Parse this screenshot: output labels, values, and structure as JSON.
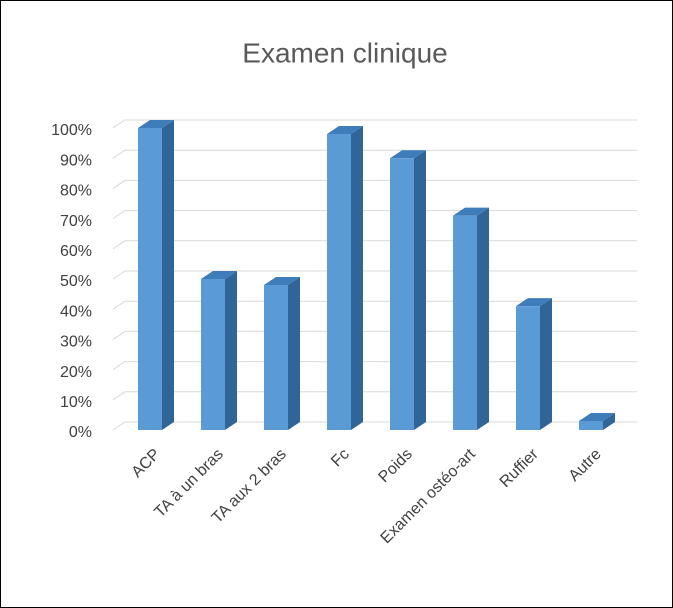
{
  "chart_data": {
    "type": "bar3d",
    "title": "Examen clinique",
    "categories": [
      "ACP",
      "TA à un bras",
      "TA aux 2 bras",
      "Fc",
      "Poids",
      "Examen ostéo-art",
      "Ruffier",
      "Autre"
    ],
    "values": [
      100,
      50,
      48,
      98,
      90,
      71,
      41,
      3
    ],
    "color": "#5b9bd5",
    "ylim": [
      0,
      100
    ],
    "yticks": [
      {
        "value": 0,
        "label": "0%"
      },
      {
        "value": 10,
        "label": "10%"
      },
      {
        "value": 20,
        "label": "20%"
      },
      {
        "value": 30,
        "label": "30%"
      },
      {
        "value": 40,
        "label": "40%"
      },
      {
        "value": 50,
        "label": "50%"
      },
      {
        "value": 60,
        "label": "60%"
      },
      {
        "value": 70,
        "label": "70%"
      },
      {
        "value": 80,
        "label": "80%"
      },
      {
        "value": 90,
        "label": "90%"
      },
      {
        "value": 100,
        "label": "100%"
      }
    ],
    "grid": true
  }
}
